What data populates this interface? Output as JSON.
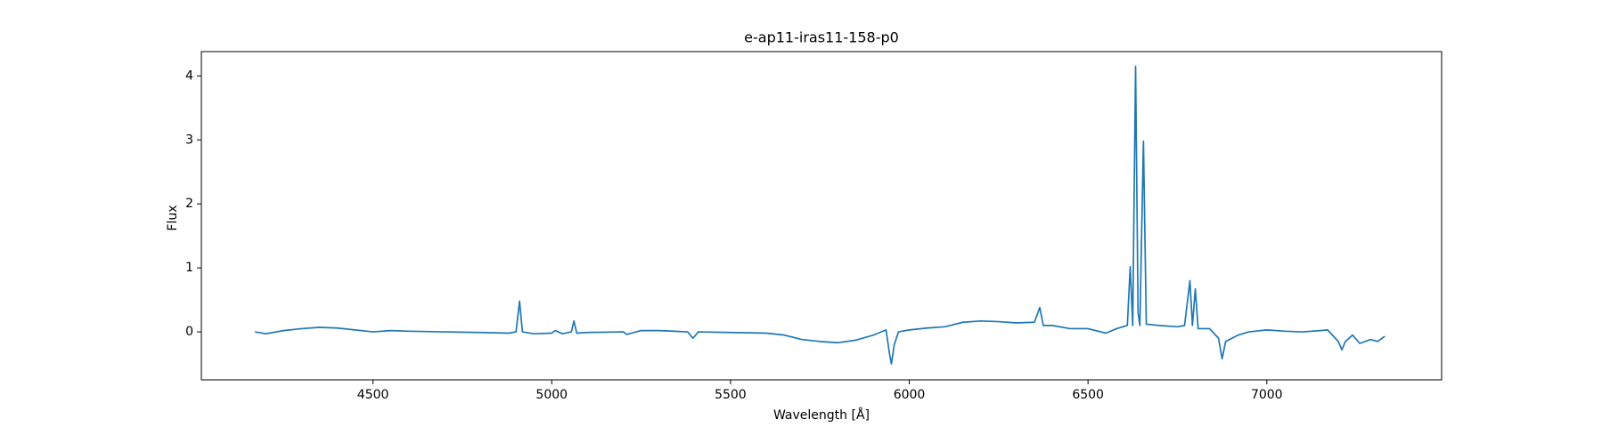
{
  "chart_data": {
    "type": "line",
    "title": "e-ap11-iras11-158-p0",
    "xlabel": "Wavelength [Å]",
    "ylabel": "Flux",
    "color": "#1f77b4",
    "x": [
      4170,
      4200,
      4250,
      4300,
      4350,
      4400,
      4450,
      4500,
      4550,
      4600,
      4700,
      4800,
      4880,
      4900,
      4910,
      4918,
      4950,
      5000,
      5010,
      5030,
      5055,
      5062,
      5070,
      5100,
      5200,
      5210,
      5250,
      5300,
      5380,
      5395,
      5410,
      5500,
      5600,
      5650,
      5700,
      5750,
      5800,
      5850,
      5900,
      5935,
      5945,
      5950,
      5958,
      5970,
      6000,
      6050,
      6100,
      6150,
      6200,
      6250,
      6300,
      6350,
      6365,
      6375,
      6400,
      6450,
      6500,
      6550,
      6580,
      6610,
      6618,
      6625,
      6633,
      6640,
      6645,
      6655,
      6663,
      6700,
      6750,
      6770,
      6785,
      6792,
      6800,
      6808,
      6840,
      6865,
      6875,
      6885,
      6920,
      6950,
      7000,
      7050,
      7100,
      7150,
      7170,
      7200,
      7210,
      7220,
      7240,
      7260,
      7290,
      7310,
      7330
    ],
    "values": [
      0.0,
      -0.03,
      0.02,
      0.05,
      0.07,
      0.06,
      0.03,
      0.0,
      0.02,
      0.01,
      0.0,
      -0.01,
      -0.02,
      0.0,
      0.48,
      0.0,
      -0.03,
      -0.02,
      0.02,
      -0.03,
      0.0,
      0.17,
      -0.02,
      -0.01,
      0.0,
      -0.04,
      0.02,
      0.02,
      0.0,
      -0.1,
      0.0,
      -0.01,
      -0.02,
      -0.05,
      -0.12,
      -0.15,
      -0.17,
      -0.13,
      -0.05,
      0.03,
      -0.35,
      -0.5,
      -0.2,
      0.0,
      0.03,
      0.06,
      0.08,
      0.15,
      0.17,
      0.16,
      0.14,
      0.15,
      0.38,
      0.1,
      0.1,
      0.05,
      0.05,
      -0.02,
      0.05,
      0.1,
      1.02,
      0.1,
      4.15,
      0.3,
      0.1,
      2.98,
      0.12,
      0.1,
      0.08,
      0.1,
      0.8,
      0.1,
      0.67,
      0.05,
      0.05,
      -0.1,
      -0.42,
      -0.15,
      -0.05,
      0.0,
      0.03,
      0.01,
      0.0,
      0.02,
      0.03,
      -0.15,
      -0.28,
      -0.15,
      -0.05,
      -0.18,
      -0.12,
      -0.15,
      -0.07
    ],
    "xlim": [
      4020,
      7489
    ],
    "ylim": [
      -0.75,
      4.38
    ],
    "xticks": [
      4500,
      5000,
      5500,
      6000,
      6500,
      7000
    ],
    "yticks": [
      0,
      1,
      2,
      3,
      4
    ]
  }
}
